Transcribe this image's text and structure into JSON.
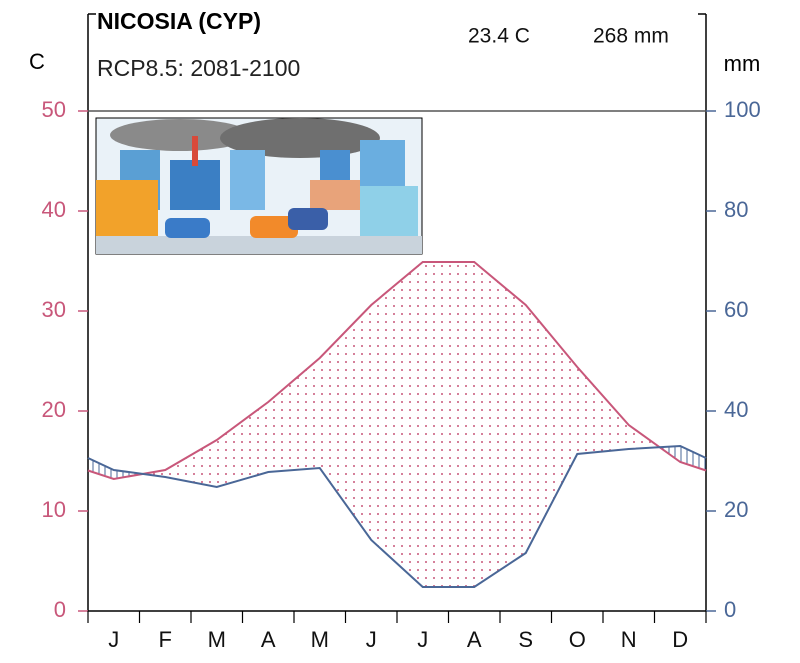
{
  "chart_data": {
    "type": "climate",
    "title": "NICOSIA (CYP)",
    "subtitle": "RCP8.5: 2081-2100",
    "annotations": [
      "23.4 C",
      "268 mm"
    ],
    "ylabel": "C",
    "y2label": "mm",
    "categories": [
      "J",
      "F",
      "M",
      "A",
      "M",
      "J",
      "J",
      "A",
      "S",
      "O",
      "N",
      "D"
    ],
    "series": [
      {
        "color": "#c8577a",
        "values": [
          13.2,
          14.1,
          17.1,
          20.9,
          25.3,
          30.6,
          34.9,
          34.9,
          30.6,
          24.4,
          18.6,
          14.9
        ]
      },
      {
        "color": "#4a6797",
        "axis": "y2",
        "values": [
          28.2,
          26.8,
          24.8,
          27.8,
          28.6,
          14.2,
          4.8,
          4.8,
          11.6,
          31.4,
          32.4,
          33.0
        ]
      }
    ],
    "ylim": [
      0,
      50
    ],
    "yticks": [
      0,
      10,
      20,
      30,
      40,
      50
    ],
    "y2lim": [
      0,
      100
    ],
    "y2ticks": [
      0,
      20,
      40,
      60,
      80,
      100
    ]
  }
}
